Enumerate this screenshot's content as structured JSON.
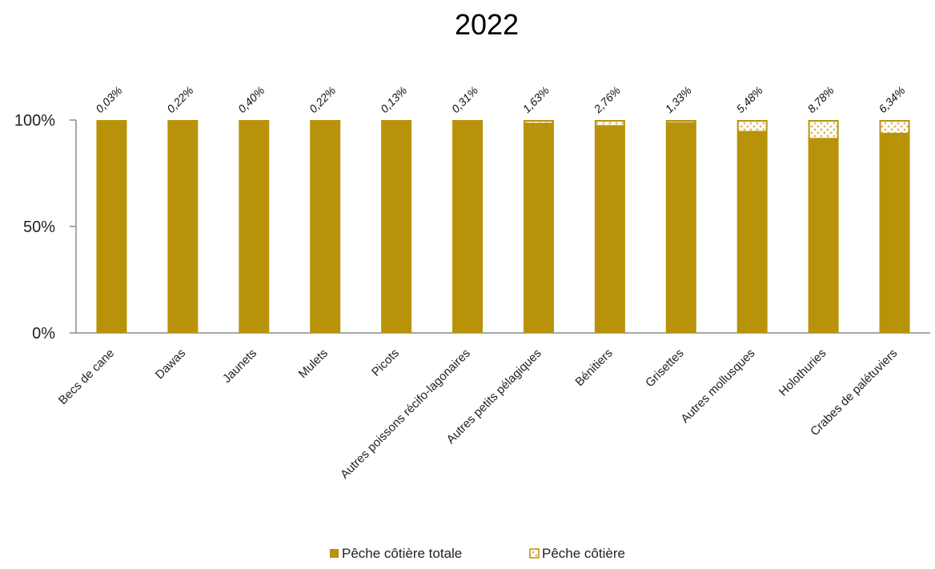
{
  "chart_data": {
    "type": "bar",
    "stacked": true,
    "title": "2022",
    "xlabel": "",
    "ylabel": "",
    "ylim": [
      0,
      100
    ],
    "y_ticks": [
      "0%",
      "50%",
      "100%"
    ],
    "categories": [
      "Becs de cane",
      "Dawas",
      "Jaunets",
      "Mulets",
      "Picots",
      "Autres poissons récifo-lagonaires",
      "Autres petits pélagiques",
      "Bénitiers",
      "Grisettes",
      "Autres mollusques",
      "Holothuries",
      "Crabes de palétuviers"
    ],
    "series": [
      {
        "name": "Pêche côtière totale",
        "color": "#B8930A",
        "pattern": "solid",
        "values": [
          99.97,
          99.78,
          99.6,
          99.78,
          99.87,
          99.69,
          98.37,
          97.24,
          98.67,
          94.52,
          91.22,
          93.66
        ]
      },
      {
        "name": "Pêche côtière",
        "color": "#B8930A",
        "pattern": "dotted",
        "values": [
          0.03,
          0.22,
          0.4,
          0.22,
          0.13,
          0.31,
          1.63,
          2.76,
          1.33,
          5.48,
          8.78,
          6.34
        ]
      }
    ],
    "data_labels": [
      "0,03%",
      "0,22%",
      "0,40%",
      "0,22%",
      "0,13%",
      "0,31%",
      "1,63%",
      "2,76%",
      "1,33%",
      "5,48%",
      "8,78%",
      "6,34%"
    ],
    "grid": false,
    "legend_position": "bottom"
  }
}
